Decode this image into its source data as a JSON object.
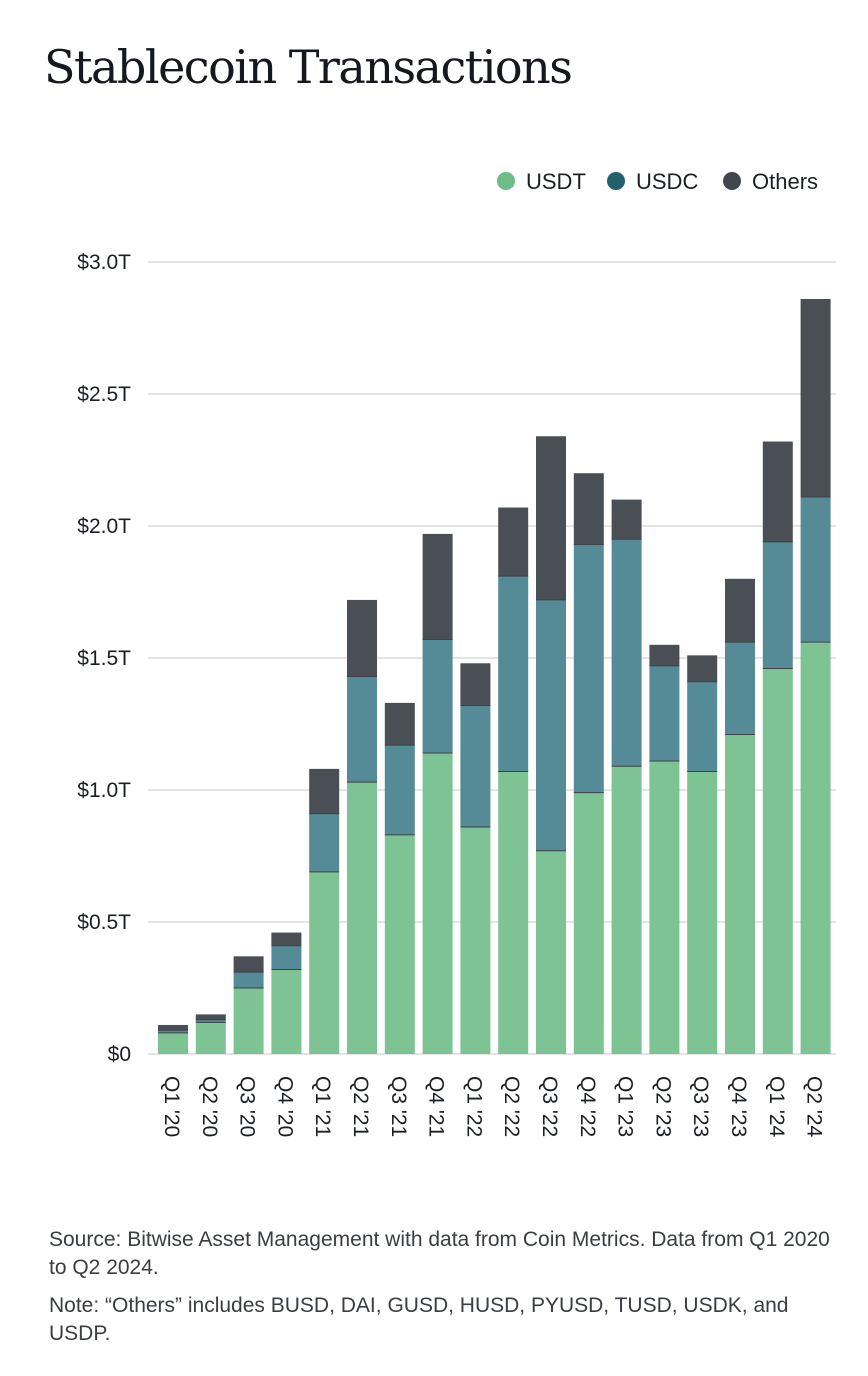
{
  "title": "Stablecoin Transactions",
  "colors": {
    "USDT": "#7dc394",
    "USDC": "#548b96",
    "Others": "#4a4e55",
    "grid": "#c9c9c9"
  },
  "legend_colors": {
    "USDT": "#6cbd87",
    "USDC": "#22606c",
    "Others": "#43474d"
  },
  "chart_data": {
    "type": "bar",
    "stacked": true,
    "title": "Stablecoin Transactions",
    "categories": [
      "Q1 '20",
      "Q2 '20",
      "Q3 '20",
      "Q4 '20",
      "Q1 '21",
      "Q2 '21",
      "Q3 '21",
      "Q4 '21",
      "Q1 '22",
      "Q2 '22",
      "Q3 '22",
      "Q4 '22",
      "Q1 '23",
      "Q2 '23",
      "Q3 '23",
      "Q4 '23",
      "Q1 '24",
      "Q2 '24"
    ],
    "series": [
      {
        "name": "USDT",
        "values": [
          0.08,
          0.12,
          0.25,
          0.32,
          0.69,
          1.03,
          0.83,
          1.14,
          0.86,
          1.07,
          0.77,
          0.99,
          1.09,
          1.11,
          1.07,
          1.21,
          1.46,
          1.56
        ]
      },
      {
        "name": "USDC",
        "values": [
          0.01,
          0.01,
          0.06,
          0.09,
          0.22,
          0.4,
          0.34,
          0.43,
          0.46,
          0.74,
          0.95,
          0.94,
          0.86,
          0.36,
          0.34,
          0.35,
          0.48,
          0.55
        ]
      },
      {
        "name": "Others",
        "values": [
          0.02,
          0.02,
          0.06,
          0.05,
          0.17,
          0.29,
          0.16,
          0.4,
          0.16,
          0.26,
          0.62,
          0.27,
          0.15,
          0.08,
          0.1,
          0.24,
          0.38,
          0.75
        ]
      }
    ],
    "yticks": [
      "$0",
      "$0.5T",
      "$1.0T",
      "$1.5T",
      "$2.0T",
      "$2.5T",
      "$3.0T"
    ],
    "ylim": [
      0,
      3.0
    ],
    "grid": true,
    "legend_position": "top-right"
  },
  "notes": {
    "source": "Source: Bitwise Asset Management with data from Coin Metrics. Data from Q1 2020 to Q2 2024.",
    "note": "Note: “Others” includes BUSD, DAI, GUSD, HUSD, PYUSD, TUSD, USDK, and USDP."
  }
}
